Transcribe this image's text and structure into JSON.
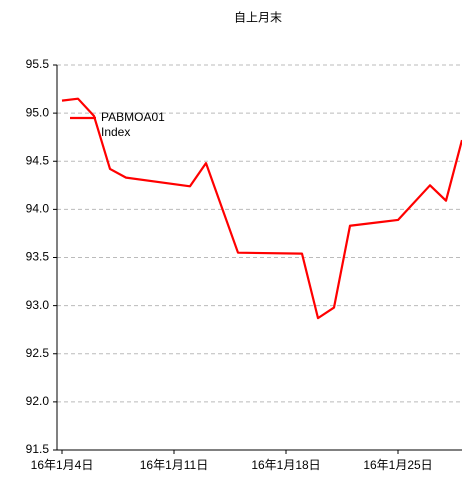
{
  "chart_data": {
    "type": "line",
    "title": "自上月末",
    "x": [
      "2016-01-04",
      "2016-01-05",
      "2016-01-06",
      "2016-01-07",
      "2016-01-08",
      "2016-01-12",
      "2016-01-13",
      "2016-01-15",
      "2016-01-19",
      "2016-01-20",
      "2016-01-21",
      "2016-01-22",
      "2016-01-25",
      "2016-01-27",
      "2016-01-28",
      "2016-01-29"
    ],
    "series": [
      {
        "name": "PABMOA01 Index",
        "color": "#ff0000",
        "values": [
          95.13,
          95.15,
          94.97,
          94.42,
          94.33,
          94.24,
          94.48,
          93.55,
          93.54,
          92.87,
          92.98,
          93.83,
          93.89,
          94.25,
          94.09,
          94.72
        ]
      }
    ],
    "xlim": [
      "2016-01-04",
      "2016-01-29"
    ],
    "xticks": [
      {
        "value": "2016-01-04",
        "label": "16年1月4日"
      },
      {
        "value": "2016-01-11",
        "label": "16年1月11日"
      },
      {
        "value": "2016-01-18",
        "label": "16年1月18日"
      },
      {
        "value": "2016-01-25",
        "label": "16年1月25日"
      }
    ],
    "ylim": [
      91.5,
      95.5
    ],
    "yticks": [
      {
        "value": 91.5,
        "label": "91.5"
      },
      {
        "value": 92,
        "label": "92.0"
      },
      92.5,
      {
        "value": 93,
        "label": "93.0"
      },
      93.5,
      {
        "value": 94,
        "label": "94.0"
      },
      94.5,
      {
        "value": 95,
        "label": "95.0"
      },
      95.5
    ],
    "grid": true,
    "legend": "upper left"
  }
}
